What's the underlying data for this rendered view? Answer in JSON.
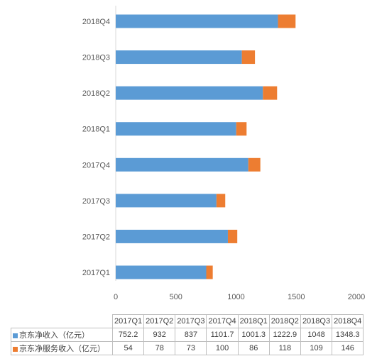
{
  "chart_data": {
    "type": "bar",
    "orientation": "horizontal",
    "stacked": true,
    "categories": [
      "2017Q1",
      "2017Q2",
      "2017Q3",
      "2017Q4",
      "2018Q1",
      "2018Q2",
      "2018Q3",
      "2018Q4"
    ],
    "series": [
      {
        "name": "京东净收入（亿元）",
        "values": [
          752.2,
          932,
          837,
          1101.7,
          1001.3,
          1222.9,
          1048,
          1348.3
        ],
        "color": "#5b9bd5"
      },
      {
        "name": "京东净服务收入（亿元）",
        "values": [
          54,
          78,
          73,
          100,
          86,
          118,
          109,
          146
        ],
        "color": "#ed7d31"
      }
    ],
    "xlim": [
      0,
      2000
    ],
    "xticks": [
      "0",
      "500",
      "1000",
      "1500",
      "2000"
    ],
    "grid": false,
    "legend": "data-table-below",
    "table": {
      "headers": [
        "2017Q1",
        "2017Q2",
        "2017Q3",
        "2017Q4",
        "2018Q1",
        "2018Q2",
        "2018Q3",
        "2018Q4"
      ],
      "rows": [
        {
          "label": "京东净收入（亿元）",
          "cells": [
            "752.2",
            "932",
            "837",
            "1101.7",
            "1001.3",
            "1222.9",
            "1048",
            "1348.3"
          ]
        },
        {
          "label": "京东净服务收入（亿元）",
          "cells": [
            "54",
            "78",
            "73",
            "100",
            "86",
            "118",
            "109",
            "146"
          ]
        }
      ]
    }
  }
}
